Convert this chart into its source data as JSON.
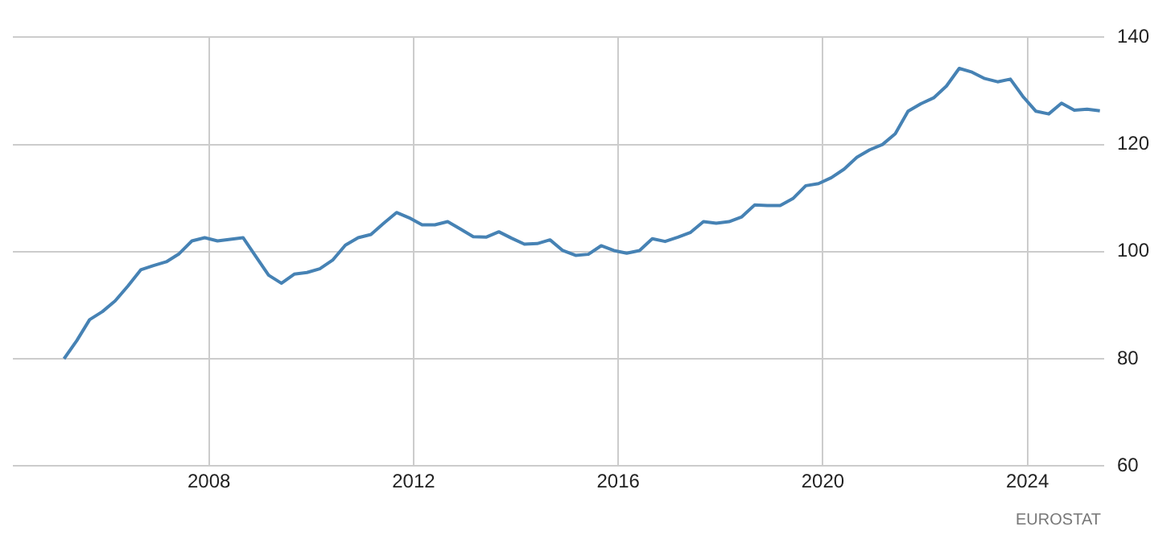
{
  "chart_data": {
    "type": "line",
    "x": [
      "2005-03",
      "2005-06",
      "2005-09",
      "2005-12",
      "2006-03",
      "2006-06",
      "2006-09",
      "2006-12",
      "2007-03",
      "2007-06",
      "2007-09",
      "2007-12",
      "2008-03",
      "2008-06",
      "2008-09",
      "2008-12",
      "2009-03",
      "2009-06",
      "2009-09",
      "2009-12",
      "2010-03",
      "2010-06",
      "2010-09",
      "2010-12",
      "2011-03",
      "2011-06",
      "2011-09",
      "2011-12",
      "2012-03",
      "2012-06",
      "2012-09",
      "2012-12",
      "2013-03",
      "2013-06",
      "2013-09",
      "2013-12",
      "2014-03",
      "2014-06",
      "2014-09",
      "2014-12",
      "2015-03",
      "2015-06",
      "2015-09",
      "2015-12",
      "2016-03",
      "2016-06",
      "2016-09",
      "2016-12",
      "2017-03",
      "2017-06",
      "2017-09",
      "2017-12",
      "2018-03",
      "2018-06",
      "2018-09",
      "2018-12",
      "2019-03",
      "2019-06",
      "2019-09",
      "2019-12",
      "2020-03",
      "2020-06",
      "2020-09",
      "2020-12",
      "2021-03",
      "2021-06",
      "2021-09",
      "2021-12",
      "2022-03",
      "2022-06",
      "2022-09",
      "2022-12",
      "2023-03",
      "2023-06",
      "2023-09",
      "2023-12",
      "2024-03",
      "2024-06",
      "2024-09",
      "2024-12",
      "2025-03",
      "2025-06"
    ],
    "series": [
      {
        "color": "#4682b4",
        "values": [
          80,
          83.4,
          87.3,
          88.8,
          90.8,
          93.6,
          96.6,
          97.4,
          98.1,
          99.6,
          102,
          102.6,
          102,
          102.3,
          102.6,
          99.1,
          95.6,
          94.1,
          95.8,
          96.1,
          96.8,
          98.4,
          101.2,
          102.6,
          103.2,
          105.3,
          107.3,
          106.3,
          105,
          105,
          105.6,
          104.2,
          102.8,
          102.7,
          103.7,
          102.5,
          101.4,
          101.5,
          102.2,
          100.2,
          99.3,
          99.5,
          101.1,
          100.2,
          99.7,
          100.2,
          102.4,
          101.9,
          102.7,
          103.6,
          105.6,
          105.3,
          105.6,
          106.5,
          108.7,
          108.6,
          108.6,
          109.9,
          112.3,
          112.7,
          113.8,
          115.4,
          117.6,
          119,
          120,
          122,
          126.2,
          127.6,
          128.7,
          130.9,
          134.2,
          133.5,
          132.3,
          131.7,
          132.2,
          128.9,
          126.2,
          125.7,
          127.7,
          126.4,
          126.6,
          126.3
        ]
      }
    ],
    "xlim": [
      "2004-03",
      "2025-07"
    ],
    "xticks": [
      {
        "value": "2008",
        "label": "2008"
      },
      {
        "value": "2012",
        "label": "2012"
      },
      {
        "value": "2016",
        "label": "2016"
      },
      {
        "value": "2020",
        "label": "2020"
      },
      {
        "value": "2024",
        "label": "2024"
      }
    ],
    "ylim": [
      60,
      140
    ],
    "yticks": [
      60,
      80,
      100,
      120,
      140
    ],
    "grid": true,
    "annotations": [
      "EUROSTAT"
    ]
  }
}
